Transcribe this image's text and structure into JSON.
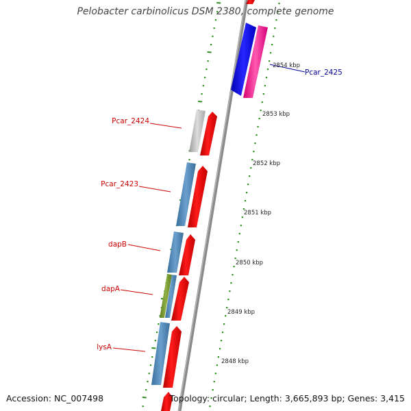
{
  "title": "Pelobacter carbinolicus DSM 2380, complete genome",
  "footer": {
    "accession": "Accession: NC_007498",
    "summary": "Topology: circular; Length: 3,665,893 bp; Genes: 3,415"
  },
  "colors": {
    "backbone": "#8a8a8a",
    "tick_dots": "#2e8b1f",
    "tick_label": "#222222",
    "gene_label": "#cc0000",
    "gene_label_top_strand": "#000099"
  },
  "position_ticks": [
    {
      "label": "2854 kbp",
      "kbp": 2854
    },
    {
      "label": "2853 kbp",
      "kbp": 2853
    },
    {
      "label": "2852 kbp",
      "kbp": 2852
    },
    {
      "label": "2851 kbp",
      "kbp": 2851
    },
    {
      "label": "2850 kbp",
      "kbp": 2850
    },
    {
      "label": "2849 kbp",
      "kbp": 2849
    },
    {
      "label": "2848 kbp",
      "kbp": 2848
    }
  ],
  "gene_labels": [
    {
      "label": "Pcar_2425",
      "strand": "top"
    },
    {
      "label": "Pcar_2424",
      "strand": "bottom"
    },
    {
      "label": "Pcar_2423",
      "strand": "bottom"
    },
    {
      "label": "dapB",
      "strand": "bottom"
    },
    {
      "label": "dapA",
      "strand": "bottom"
    },
    {
      "label": "lysA",
      "strand": "bottom"
    }
  ]
}
